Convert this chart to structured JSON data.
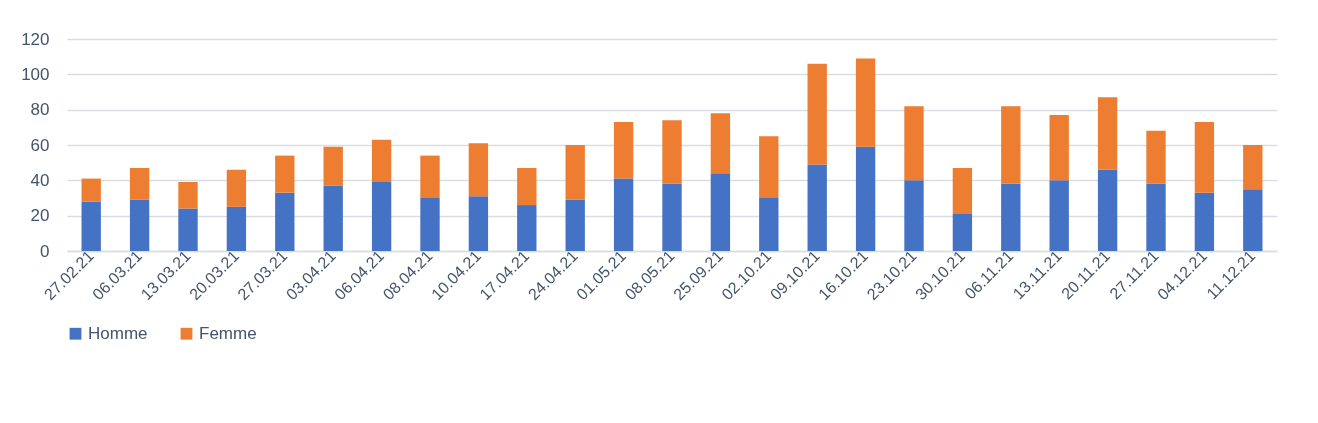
{
  "chart_data": {
    "type": "bar",
    "stacked": true,
    "categories": [
      "27.02.21",
      "06.03.21",
      "13.03.21",
      "20.03.21",
      "27.03.21",
      "03.04.21",
      "06.04.21",
      "08.04.21",
      "10.04.21",
      "17.04.21",
      "24.04.21",
      "01.05.21",
      "08.05.21",
      "25.09.21",
      "02.10.21",
      "09.10.21",
      "16.10.21",
      "23.10.21",
      "30.10.21",
      "06.11.21",
      "13.11.21",
      "20.11.21",
      "27.11.21",
      "04.12.21",
      "11.12.21"
    ],
    "series": [
      {
        "name": "Homme",
        "color": "#4472c4",
        "values": [
          28,
          29,
          24,
          25,
          33,
          37,
          39,
          30,
          31,
          26,
          29,
          41,
          38,
          44,
          30,
          49,
          59,
          40,
          21,
          38,
          40,
          46,
          38,
          33,
          35
        ]
      },
      {
        "name": "Femme",
        "color": "#ed7d31",
        "values": [
          13,
          18,
          15,
          21,
          21,
          22,
          24,
          24,
          30,
          21,
          31,
          32,
          36,
          34,
          35,
          57,
          50,
          42,
          26,
          44,
          37,
          41,
          30,
          40,
          25
        ]
      }
    ],
    "ylim": [
      0,
      120
    ],
    "yticks": [
      0,
      20,
      40,
      60,
      80,
      100,
      120
    ],
    "grid": "y",
    "legend": "bottom"
  }
}
